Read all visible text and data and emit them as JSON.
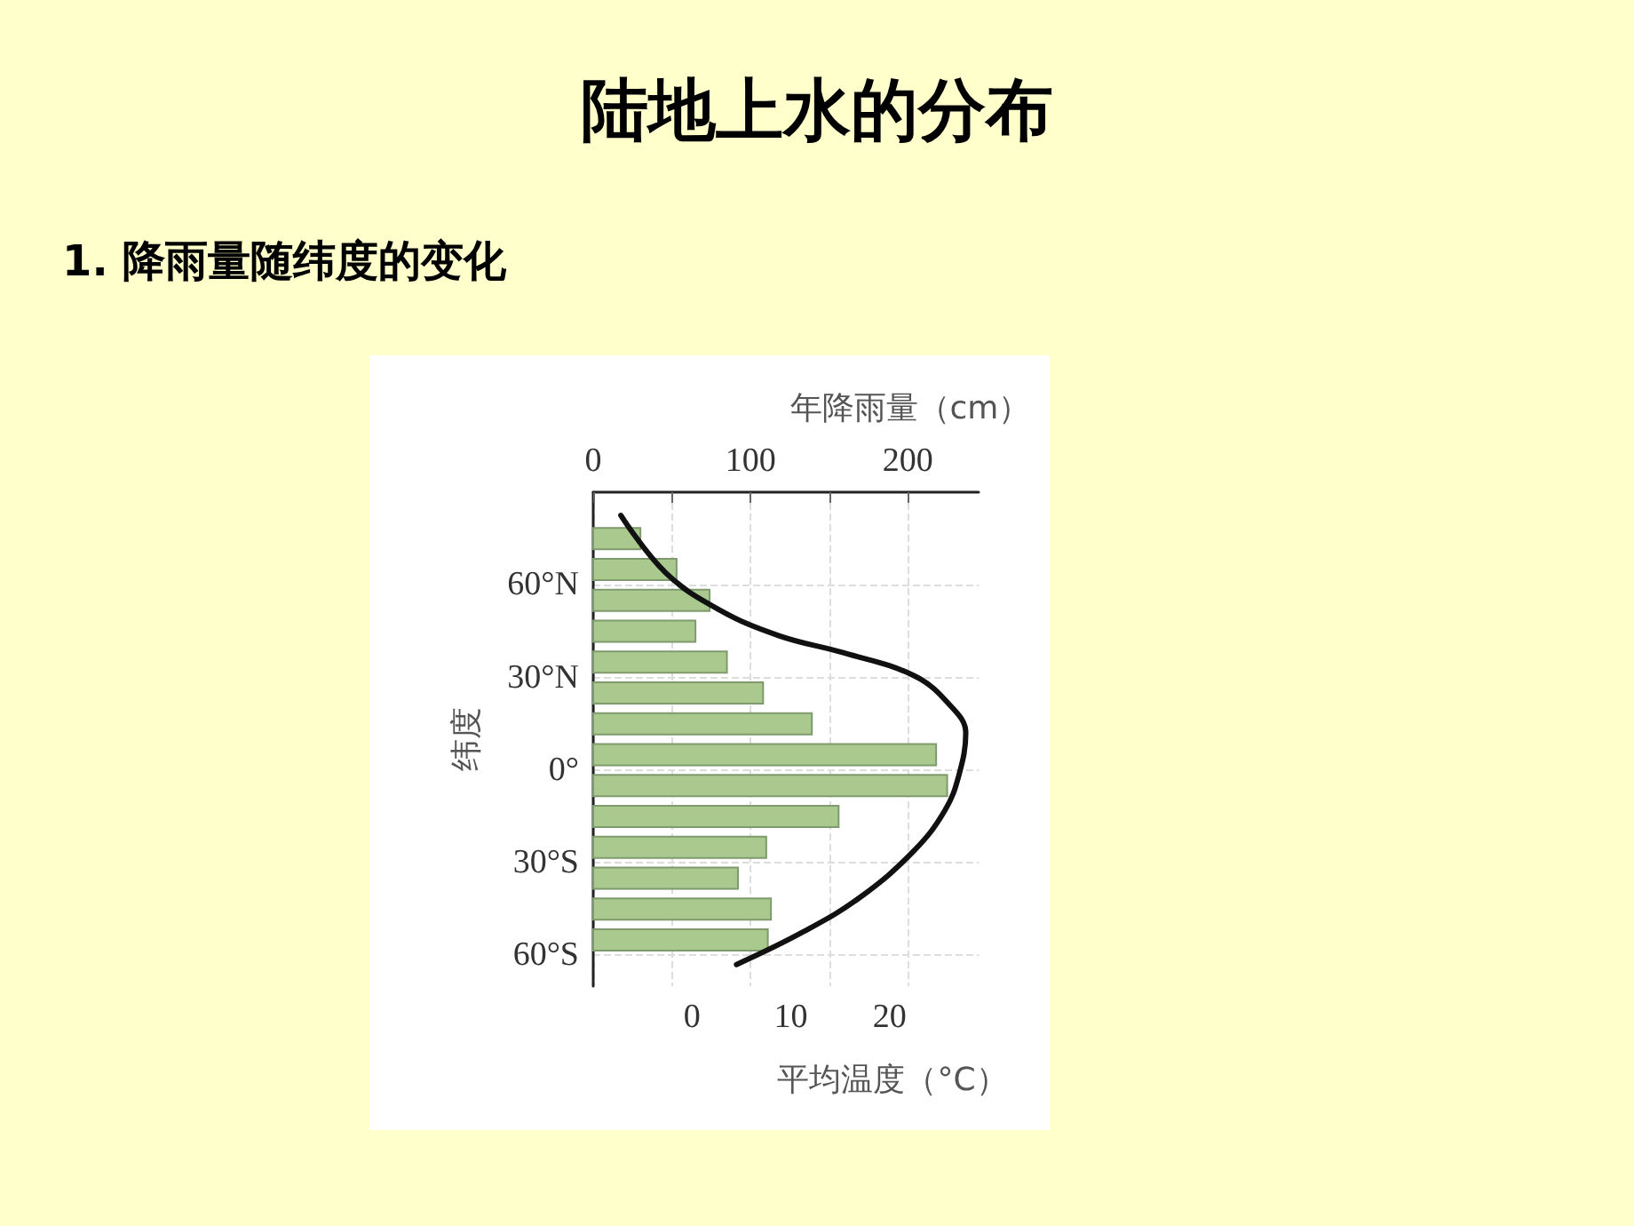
{
  "chart_data": {
    "type": "bar",
    "orientation": "horizontal",
    "title": "陆地上水的分布",
    "subtitle": "1. 降雨量随纬度的变化",
    "x2label": "年降雨量（cm）",
    "xlabel": "平均温度（°C）",
    "ylabel": "纬度",
    "x2lim": [
      0,
      245
    ],
    "x2ticks": [
      0,
      {
        "value": 50,
        "label": null
      },
      100,
      {
        "value": 150,
        "label": null
      },
      200
    ],
    "xlim": [
      -10,
      29
    ],
    "xticks": [
      0,
      10,
      20
    ],
    "ylim": [
      -70,
      90
    ],
    "yticks": [
      {
        "value": 60,
        "label": "60°N"
      },
      {
        "value": 30,
        "label": "30°N"
      },
      {
        "value": 0,
        "label": "0°"
      },
      {
        "value": -30,
        "label": "30°S"
      },
      {
        "value": -60,
        "label": "60°S"
      }
    ],
    "grid": true,
    "marker": "none",
    "series": [
      {
        "axis": "x2",
        "color": "#a9c98f",
        "x": [
          75,
          65,
          55,
          45,
          35,
          25,
          15,
          5,
          -5,
          -15,
          -25,
          -35,
          -45,
          -55
        ],
        "values": [
          30,
          53,
          74,
          65,
          85,
          108,
          139,
          218,
          225,
          156,
          110,
          92,
          113,
          111
        ]
      },
      {
        "type": "line",
        "color": "#111111",
        "line_style": "solid",
        "x": [
          82.5,
          64,
          52,
          43.5,
          38,
          30.5,
          21,
          12,
          -1.7,
          -13,
          -26,
          -41,
          -52.5,
          -63
        ],
        "values": [
          -7.2,
          -2.7,
          2.7,
          8.8,
          15.3,
          22.5,
          26.1,
          27.7,
          27,
          25.6,
          22.5,
          17.1,
          11.2,
          4.5
        ]
      }
    ]
  }
}
